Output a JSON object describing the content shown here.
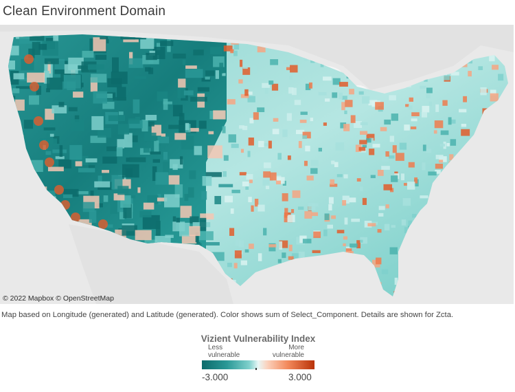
{
  "title": "Clean Environment Domain",
  "map": {
    "attribution": "© 2022 Mapbox © OpenStreetMap",
    "caption": "Map based on Longitude (generated) and Latitude (generated).  Color shows sum of Select_Component.  Details are shown for Zcta."
  },
  "legend": {
    "title": "Vizient Vulnerability Index",
    "left_label_line1": "Less",
    "left_label_line2": "vulnerable",
    "right_label_line1": "More",
    "right_label_line2": "vulnerable",
    "min": "-3.000",
    "max": "3.000",
    "colors": {
      "low": "#0c6b6b",
      "mid": "#e8f7f6",
      "high": "#b93208"
    }
  }
}
